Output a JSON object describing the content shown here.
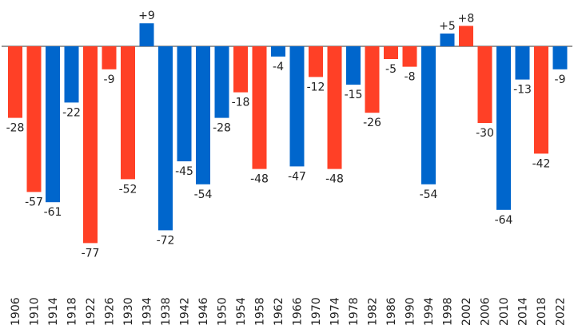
{
  "chart_data": {
    "type": "bar",
    "title": "",
    "xlabel": "",
    "ylabel": "",
    "ylim": [
      -80,
      10
    ],
    "grid": false,
    "legend": "none",
    "colors": {
      "red": "#ff4026",
      "blue": "#0066cc"
    },
    "categories": [
      "1906",
      "1910",
      "1914",
      "1918",
      "1922",
      "1926",
      "1930",
      "1934",
      "1938",
      "1942",
      "1946",
      "1950",
      "1954",
      "1958",
      "1962",
      "1966",
      "1970",
      "1974",
      "1978",
      "1982",
      "1986",
      "1990",
      "1994",
      "1998",
      "2002",
      "2006",
      "2010",
      "2014",
      "2018",
      "2022"
    ],
    "values": [
      -28,
      -57,
      -61,
      -22,
      -77,
      -9,
      -52,
      9,
      -72,
      -45,
      -54,
      -28,
      -18,
      -48,
      -4,
      -47,
      -12,
      -48,
      -15,
      -26,
      -5,
      -8,
      -54,
      5,
      8,
      -30,
      -64,
      -13,
      -42,
      -9
    ],
    "labels": [
      "-28",
      "-57",
      "-61",
      "-22",
      "-77",
      "-9",
      "-52",
      "+9",
      "-72",
      "-45",
      "-54",
      "-28",
      "-18",
      "-48",
      "-4",
      "-47",
      "-12",
      "-48",
      "-15",
      "-26",
      "-5",
      "-8",
      "-54",
      "+5",
      "+8",
      "-30",
      "-64",
      "-13",
      "-42",
      "-9"
    ],
    "bar_colors": [
      "red",
      "red",
      "blue",
      "blue",
      "red",
      "red",
      "red",
      "blue",
      "blue",
      "blue",
      "blue",
      "blue",
      "red",
      "red",
      "blue",
      "blue",
      "red",
      "red",
      "blue",
      "red",
      "red",
      "red",
      "blue",
      "blue",
      "red",
      "red",
      "blue",
      "blue",
      "red",
      "blue"
    ]
  }
}
